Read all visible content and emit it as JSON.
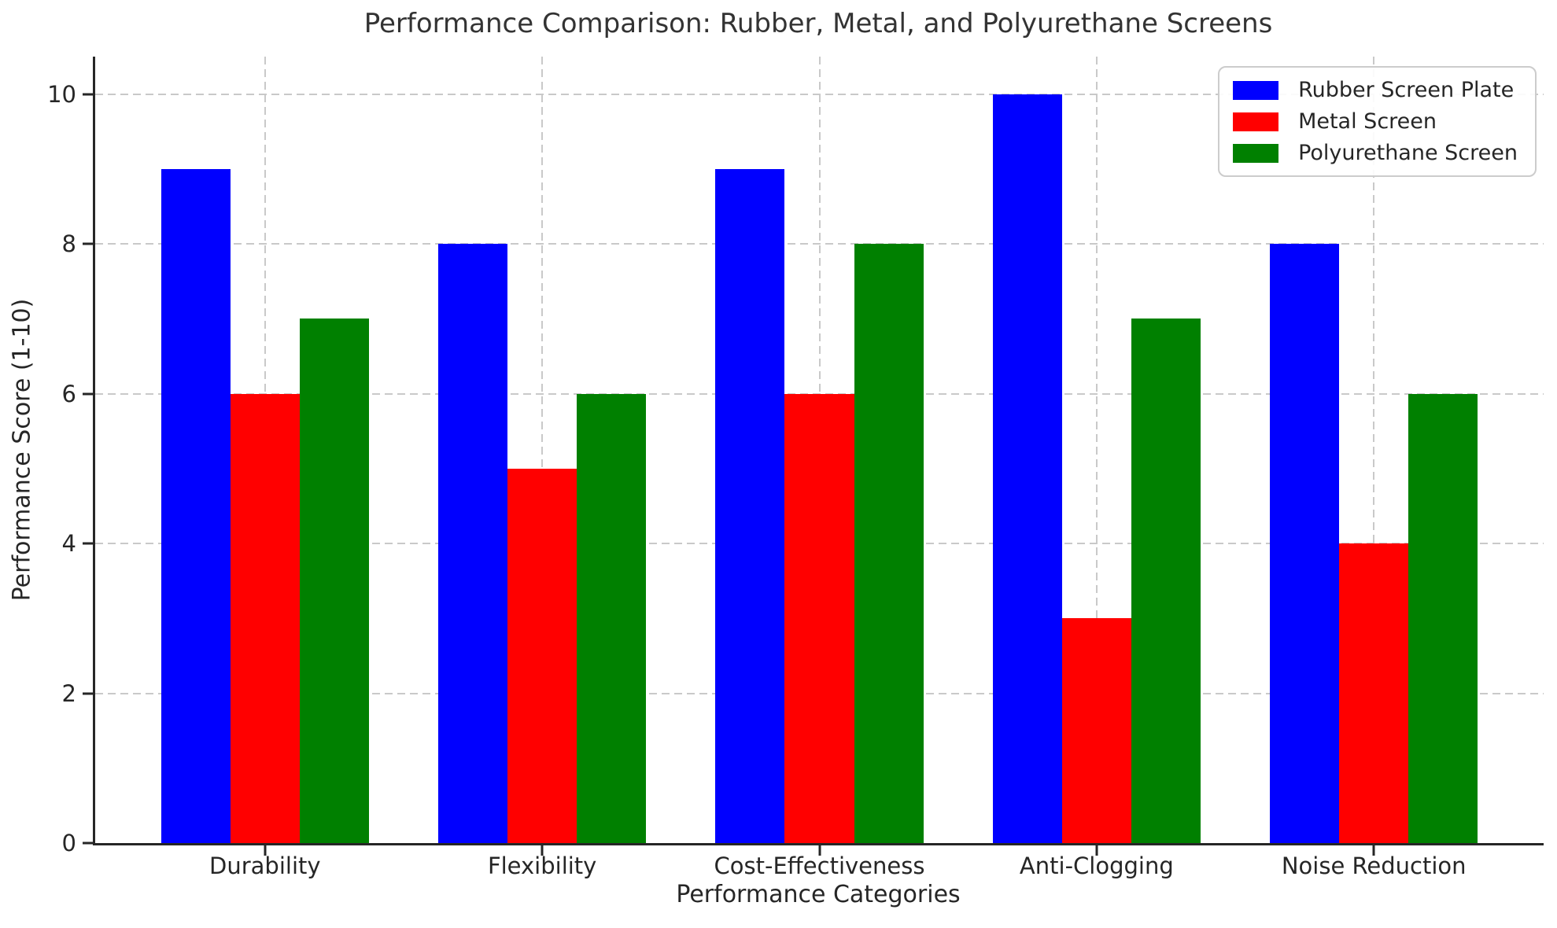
{
  "chart_data": {
    "type": "bar",
    "title": "Performance Comparison: Rubber, Metal, and Polyurethane Screens",
    "categories": [
      "Durability",
      "Flexibility",
      "Cost-Effectiveness",
      "Anti-Clogging",
      "Noise Reduction"
    ],
    "series": [
      {
        "name": "Rubber Screen Plate",
        "color": "#0000ff",
        "values": [
          9,
          8,
          9,
          10,
          8
        ]
      },
      {
        "name": "Metal Screen",
        "color": "#ff0000",
        "values": [
          6,
          5,
          6,
          3,
          4
        ]
      },
      {
        "name": "Polyurethane Screen",
        "color": "#008000",
        "values": [
          7,
          6,
          8,
          7,
          6
        ]
      }
    ],
    "xlabel": "Performance Categories",
    "ylabel": "Performance Score (1-10)",
    "ylim": [
      0,
      10.5
    ],
    "yticks": [
      0,
      2,
      4,
      6,
      8,
      10
    ],
    "bar_width_units": 0.25,
    "grid": true,
    "grid_style": "dashed",
    "legend_position": "upper right"
  },
  "colors": {
    "grid": "#c9c9c9",
    "spine": "#262626",
    "text": "#262626",
    "title": "#333333",
    "background": "#ffffff"
  }
}
